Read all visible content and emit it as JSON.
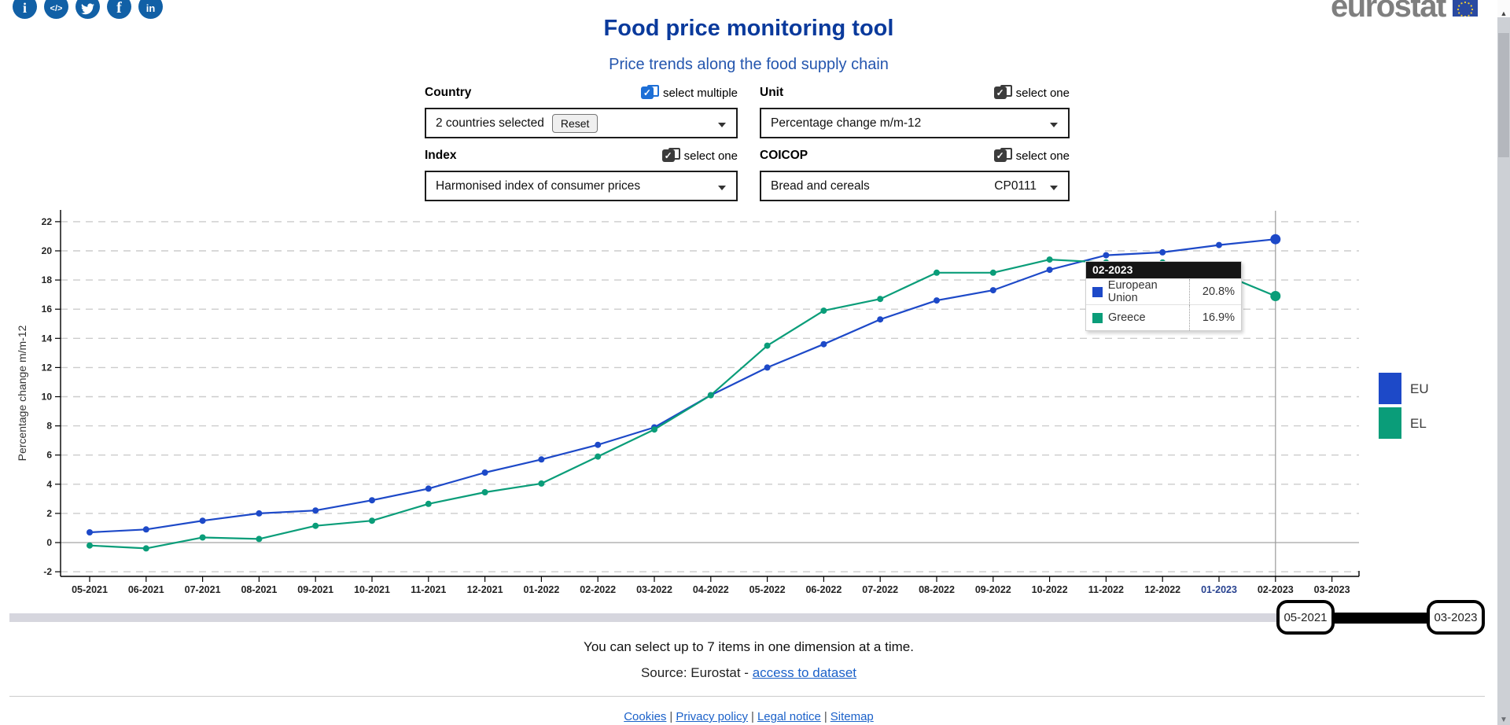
{
  "header": {
    "social_icons": [
      "info",
      "embed-code",
      "twitter",
      "facebook",
      "linkedin"
    ],
    "logo_text": "eurostat",
    "title": "Food price monitoring tool",
    "subtitle": "Price trends along the food supply chain"
  },
  "controls": {
    "country": {
      "label": "Country",
      "mode_label": "select multiple",
      "value": "2 countries selected",
      "reset_label": "Reset"
    },
    "unit": {
      "label": "Unit",
      "mode_label": "select one",
      "value": "Percentage change m/m-12"
    },
    "index": {
      "label": "Index",
      "mode_label": "select one",
      "value": "Harmonised index of consumer prices"
    },
    "coicop": {
      "label": "COICOP",
      "mode_label": "select one",
      "value": "Bread and cereals",
      "code": "CP0111"
    }
  },
  "chart_data": {
    "type": "line",
    "ylabel": "Percentage change m/m-12",
    "ylim": [
      -3,
      23
    ],
    "yticks": [
      -2,
      0,
      2,
      4,
      6,
      8,
      10,
      12,
      14,
      16,
      18,
      20,
      22
    ],
    "grid": "dashed",
    "legend_position": "right",
    "categories": [
      "05-2021",
      "06-2021",
      "07-2021",
      "08-2021",
      "09-2021",
      "10-2021",
      "11-2021",
      "12-2021",
      "01-2022",
      "02-2022",
      "03-2022",
      "04-2022",
      "05-2022",
      "06-2022",
      "07-2022",
      "08-2022",
      "09-2022",
      "10-2022",
      "11-2022",
      "12-2022",
      "01-2023",
      "02-2023",
      "03-2023"
    ],
    "series": [
      {
        "name": "EU",
        "long_name": "European Union",
        "color": "#1d49c8",
        "values": [
          0.7,
          0.9,
          1.5,
          2.0,
          2.2,
          2.9,
          3.7,
          4.8,
          5.7,
          6.7,
          7.9,
          10.1,
          12.0,
          13.6,
          15.3,
          16.6,
          17.3,
          18.7,
          19.7,
          19.9,
          20.4,
          20.8,
          null
        ]
      },
      {
        "name": "EL",
        "long_name": "Greece",
        "color": "#0a9d79",
        "values": [
          -0.2,
          -0.4,
          0.35,
          0.25,
          1.15,
          1.5,
          2.65,
          3.45,
          4.05,
          5.9,
          7.75,
          10.1,
          13.5,
          15.9,
          16.7,
          18.5,
          18.5,
          19.4,
          19.2,
          19.2,
          18.5,
          16.9,
          null
        ]
      }
    ],
    "highlight_index": 21,
    "x_label_special": {
      "label": "01-2023",
      "color": "#27418f"
    }
  },
  "tooltip": {
    "date": "02-2023",
    "rows": [
      {
        "name": "European Union",
        "value": "20.8%"
      },
      {
        "name": "Greece",
        "value": "16.9%"
      }
    ]
  },
  "legend": [
    {
      "label": "EU"
    },
    {
      "label": "EL"
    }
  ],
  "slider": {
    "start_label": "05-2021",
    "end_label": "03-2023"
  },
  "notes": {
    "selection_note": "You can select up to 7 items in one dimension at a time.",
    "source_prefix": "Source: Eurostat - ",
    "source_link": "access to dataset"
  },
  "footer": {
    "links": [
      "Cookies",
      "Privacy policy",
      "Legal notice",
      "Sitemap"
    ],
    "separator": "|"
  }
}
